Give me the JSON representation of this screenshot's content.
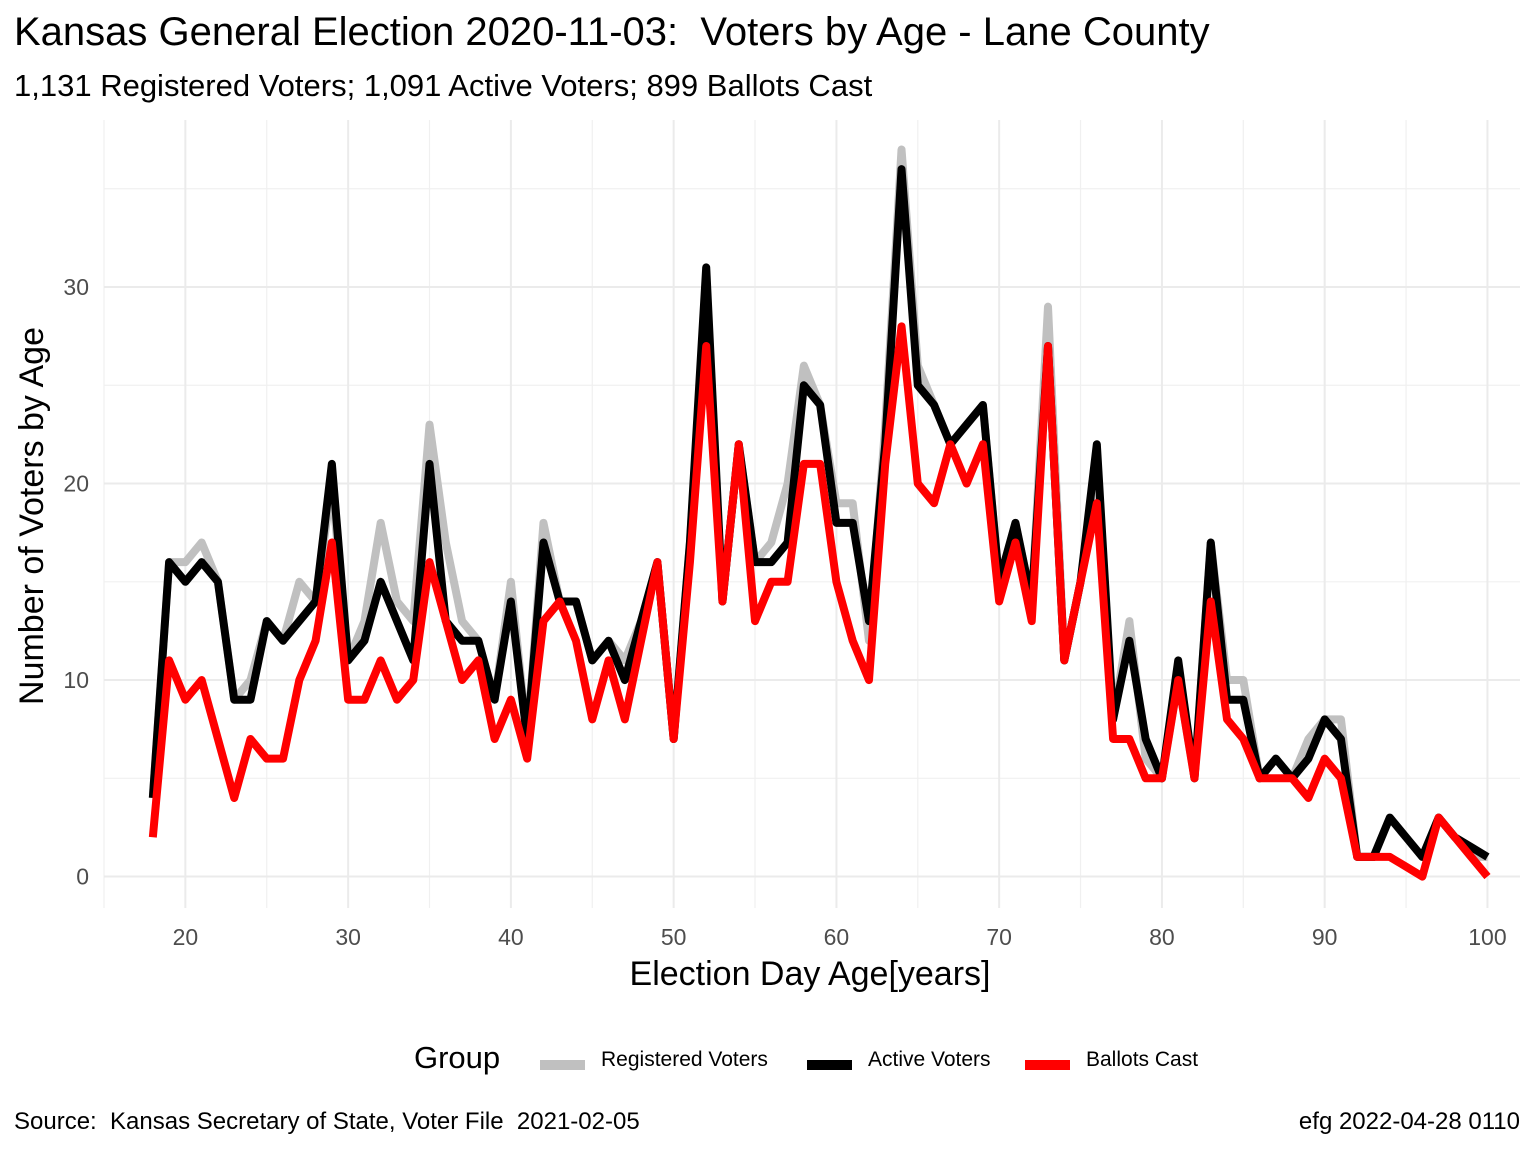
{
  "title": "Kansas General Election 2020-11-03:  Voters by Age - Lane County",
  "subtitle": "1,131 Registered Voters; 1,091 Active Voters; 899 Ballots Cast",
  "caption_left": "Source:  Kansas Secretary of State, Voter File  2021-02-05",
  "caption_right": "efg 2022-04-28 0110",
  "legend": {
    "title": "Group",
    "items": [
      {
        "label": "Registered Voters",
        "color": "#c0c0c0"
      },
      {
        "label": "Active Voters",
        "color": "#000000"
      },
      {
        "label": "Ballots Cast",
        "color": "#ff0000"
      }
    ]
  },
  "chart_data": {
    "type": "line",
    "xlabel": "Election Day Age[years]",
    "ylabel": "Number of Voters by Age",
    "xlim": [
      15,
      102
    ],
    "ylim": [
      -1.6,
      38.5
    ],
    "x_ticks": [
      20,
      30,
      40,
      50,
      60,
      70,
      80,
      90,
      100
    ],
    "y_ticks": [
      0,
      10,
      20,
      30
    ],
    "grid": true,
    "legend_position": "bottom",
    "x": [
      18,
      19,
      20,
      21,
      22,
      23,
      24,
      25,
      26,
      27,
      28,
      29,
      30,
      31,
      32,
      33,
      34,
      35,
      36,
      37,
      38,
      39,
      40,
      41,
      42,
      43,
      44,
      45,
      46,
      47,
      48,
      49,
      50,
      51,
      52,
      53,
      54,
      55,
      56,
      57,
      58,
      59,
      60,
      61,
      62,
      63,
      64,
      65,
      66,
      67,
      68,
      69,
      70,
      71,
      72,
      73,
      74,
      75,
      76,
      77,
      78,
      79,
      80,
      81,
      82,
      83,
      84,
      85,
      86,
      87,
      88,
      89,
      90,
      91,
      92,
      93,
      94,
      95,
      96,
      97,
      98,
      99,
      100
    ],
    "series": [
      {
        "name": "Registered Voters",
        "color": "#c0c0c0",
        "values": [
          4,
          16,
          16,
          17,
          15,
          9,
          10,
          13,
          12,
          15,
          14,
          20,
          11,
          13,
          18,
          14,
          13,
          23,
          17,
          13,
          12,
          9,
          15,
          7,
          18,
          14,
          14,
          11,
          12,
          11,
          13,
          16,
          7,
          17,
          30,
          14,
          22,
          16,
          17,
          20,
          26,
          24,
          19,
          19,
          12,
          23,
          37,
          26,
          24,
          22,
          23,
          24,
          15,
          18,
          14,
          29,
          11,
          15,
          21,
          8,
          13,
          6,
          5,
          10,
          5,
          17,
          10,
          10,
          5,
          6,
          5,
          7,
          8,
          8,
          1,
          1,
          3,
          2,
          1,
          3,
          2,
          1,
          1
        ]
      },
      {
        "name": "Active Voters",
        "color": "#000000",
        "values": [
          4,
          16,
          15,
          16,
          15,
          9,
          9,
          13,
          12,
          13,
          14,
          21,
          11,
          12,
          15,
          13,
          11,
          21,
          13,
          12,
          12,
          9,
          14,
          7,
          17,
          14,
          14,
          11,
          12,
          10,
          13,
          16,
          7,
          17,
          31,
          14,
          22,
          16,
          16,
          17,
          25,
          24,
          18,
          18,
          13,
          22,
          36,
          25,
          24,
          22,
          23,
          24,
          15,
          18,
          14,
          27,
          11,
          15,
          22,
          8,
          12,
          7,
          5,
          11,
          5,
          17,
          9,
          9,
          5,
          6,
          5,
          6,
          8,
          7,
          1,
          1,
          3,
          2,
          1,
          3,
          2,
          1.5,
          1
        ]
      },
      {
        "name": "Ballots Cast",
        "color": "#ff0000",
        "values": [
          2,
          11,
          9,
          10,
          7,
          4,
          7,
          6,
          6,
          10,
          12,
          17,
          9,
          9,
          11,
          9,
          10,
          16,
          13,
          10,
          11,
          7,
          9,
          6,
          13,
          14,
          12,
          8,
          11,
          8,
          12,
          16,
          7,
          16,
          27,
          14,
          22,
          13,
          15,
          15,
          21,
          21,
          15,
          12,
          10,
          21,
          28,
          20,
          19,
          22,
          20,
          22,
          14,
          17,
          13,
          27,
          11,
          15,
          19,
          7,
          7,
          5,
          5,
          10,
          5,
          14,
          8,
          7,
          5,
          5,
          5,
          4,
          6,
          5,
          1,
          1,
          1,
          0.5,
          0,
          3,
          2,
          1,
          0
        ]
      }
    ]
  }
}
